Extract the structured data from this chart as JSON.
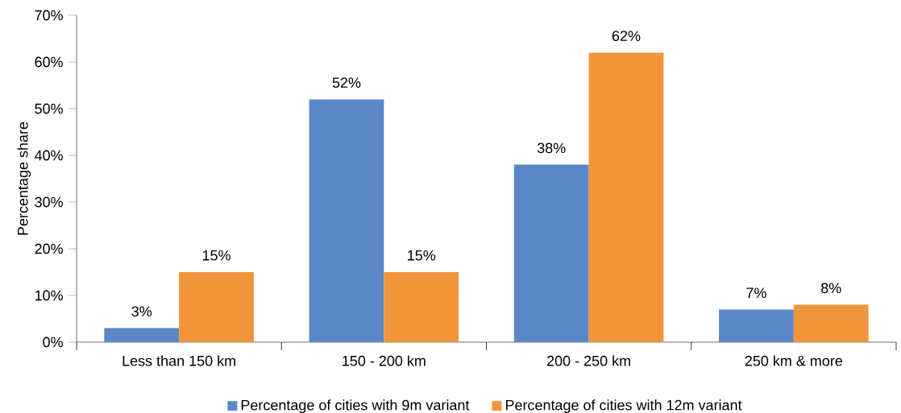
{
  "chart_data": {
    "type": "bar",
    "ylabel": "Percentage share",
    "categories": [
      "Less than 150 km",
      "150 - 200 km",
      "200 - 250 km",
      "250 km & more"
    ],
    "series": [
      {
        "name": "Percentage of cities with 9m variant",
        "color": "#5b87c6",
        "values": [
          3,
          52,
          38,
          7
        ],
        "value_labels": [
          "3%",
          "52%",
          "38%",
          "7%"
        ]
      },
      {
        "name": "Percentage of cities with 12m variant",
        "color": "#f0953a",
        "values": [
          15,
          15,
          62,
          8
        ],
        "value_labels": [
          "15%",
          "15%",
          "62%",
          "8%"
        ]
      }
    ],
    "ylim": [
      0,
      70
    ],
    "yticks": [
      {
        "value": 0,
        "label": "0%"
      },
      {
        "value": 10,
        "label": "10%"
      },
      {
        "value": 20,
        "label": "20%"
      },
      {
        "value": 30,
        "label": "30%"
      },
      {
        "value": 40,
        "label": "40%"
      },
      {
        "value": 50,
        "label": "50%"
      },
      {
        "value": 60,
        "label": "60%"
      },
      {
        "value": 70,
        "label": "70%"
      }
    ],
    "grid": false,
    "legend": "bottom"
  }
}
